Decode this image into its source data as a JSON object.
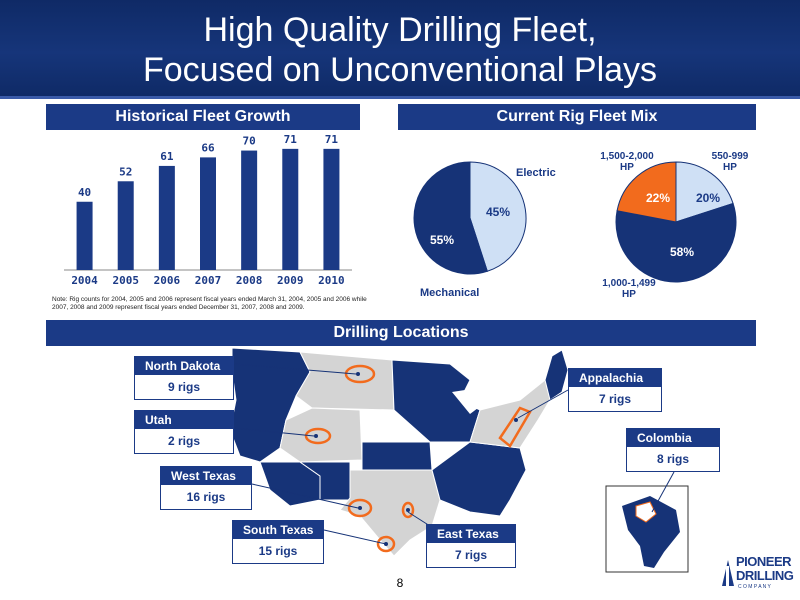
{
  "header": {
    "title_line1": "High Quality Drilling Fleet,",
    "title_line2": "Focused on Unconventional Plays"
  },
  "sections": {
    "fleet_growth": "Historical Fleet Growth",
    "fleet_mix": "Current Rig Fleet Mix",
    "locations": "Drilling Locations"
  },
  "chart_data": [
    {
      "type": "bar",
      "title": "Historical Fleet Growth",
      "categories": [
        "2004",
        "2005",
        "2006",
        "2007",
        "2008",
        "2009",
        "2010"
      ],
      "values": [
        40,
        52,
        61,
        66,
        70,
        71,
        71
      ],
      "ylim": [
        0,
        80
      ],
      "color": "#1b3a86"
    },
    {
      "type": "pie",
      "slices": [
        {
          "label": "Electric",
          "value": 45,
          "display": "45%",
          "color": "#cfe0f5"
        },
        {
          "label": "Mechanical",
          "value": 55,
          "display": "55%",
          "color": "#163377"
        }
      ]
    },
    {
      "type": "pie",
      "slices": [
        {
          "label": "550-999 HP",
          "value": 20,
          "display": "20%",
          "color": "#cfe0f5"
        },
        {
          "label": "1,000-1,499 HP",
          "value": 58,
          "display": "58%",
          "color": "#163377"
        },
        {
          "label": "1,500-2,000 HP",
          "value": 22,
          "display": "22%",
          "color": "#f26b1d"
        }
      ]
    }
  ],
  "pie_labels": {
    "electric": "Electric",
    "mechanical": "Mechanical",
    "hp_550": "550-999",
    "hp_550_unit": "HP",
    "hp_1000": "1,000-1,499",
    "hp_1000_unit": "HP",
    "hp_1500": "1,500-2,000",
    "hp_1500_unit": "HP"
  },
  "note": "Note: Rig counts for 2004, 2005 and 2006 represent fiscal years ended March 31, 2004, 2005 and 2006 while 2007, 2008 and 2009 represent fiscal years ended December 31, 2007, 2008 and 2009.",
  "locations": [
    {
      "name": "North Dakota",
      "rigs": "9 rigs"
    },
    {
      "name": "Utah",
      "rigs": "2 rigs"
    },
    {
      "name": "West Texas",
      "rigs": "16 rigs"
    },
    {
      "name": "South Texas",
      "rigs": "15 rigs"
    },
    {
      "name": "East Texas",
      "rigs": "7 rigs"
    },
    {
      "name": "Appalachia",
      "rigs": "7 rigs"
    },
    {
      "name": "Colombia",
      "rigs": "8 rigs"
    }
  ],
  "page_number": "8",
  "logo": {
    "line1": "PIONEER",
    "line2": "DRILLING",
    "line3": "C O M P A N Y"
  },
  "colors": {
    "navy": "#1b3a86",
    "orange": "#f26b1d",
    "light_blue": "#cfe0f5",
    "map_gray": "#d4d4d4"
  }
}
